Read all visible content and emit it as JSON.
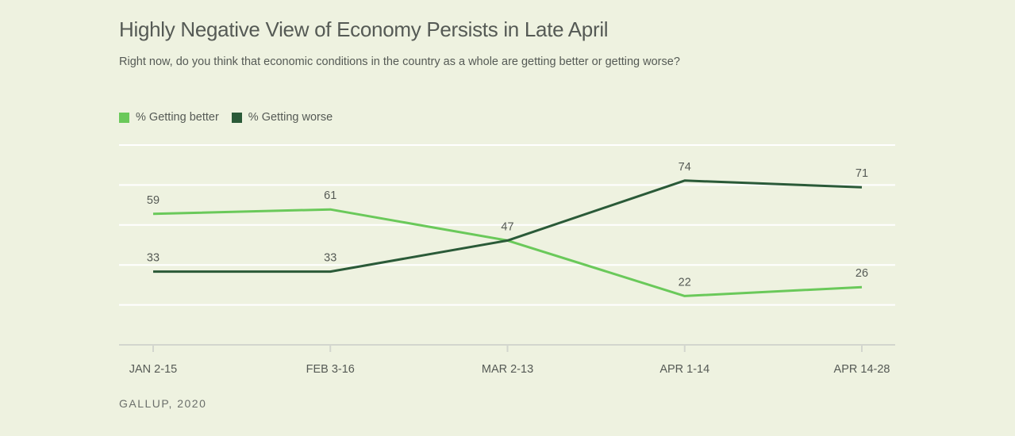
{
  "header": {
    "title": "Highly Negative View of Economy Persists in Late April",
    "subtitle": "Right now, do you think that economic conditions in the country as a whole are getting better or getting worse?"
  },
  "footer": {
    "source": "GALLUP, 2020"
  },
  "colors": {
    "better": "#6ac95a",
    "worse": "#2a5a38",
    "grid": "#ffffff",
    "axis": "#d3d6ce"
  },
  "chart_data": {
    "type": "line",
    "title": "Highly Negative View of Economy Persists in Late April",
    "categories": [
      "JAN 2-15",
      "FEB 3-16",
      "MAR 2-13",
      "APR 1-14",
      "APR 14-28"
    ],
    "series": [
      {
        "name": "% Getting better",
        "values": [
          59,
          61,
          47,
          22,
          26
        ]
      },
      {
        "name": "% Getting worse",
        "values": [
          33,
          33,
          47,
          74,
          71
        ]
      }
    ],
    "xlabel": "",
    "ylabel": "",
    "ylim": [
      0,
      90
    ],
    "grid": true,
    "legend": "top-left",
    "data_labels": {
      "% Getting better": [
        "59",
        "61",
        "",
        "22",
        "26"
      ],
      "% Getting worse": [
        "33",
        "33",
        "47",
        "74",
        "71"
      ]
    }
  }
}
